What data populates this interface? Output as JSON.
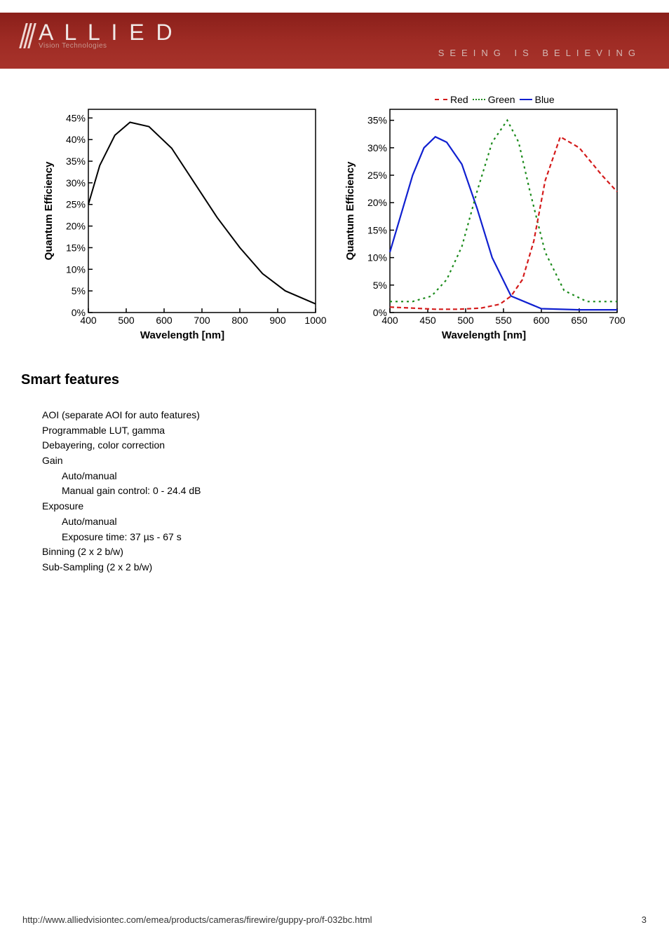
{
  "header": {
    "logo_main": "A L L I E D",
    "logo_sub": "Vision Technologies",
    "tagline": "SEEING  IS  BELIEVING"
  },
  "chart_left": {
    "type": "line",
    "ylabel": "Quantum Efficiency",
    "xlabel": "Wavelength [nm]",
    "xlim": [
      400,
      1000
    ],
    "xticks": [
      400,
      500,
      600,
      700,
      800,
      900,
      1000
    ],
    "ylim": [
      0,
      47
    ],
    "yticks": [
      0,
      5,
      10,
      15,
      20,
      25,
      30,
      35,
      40,
      45
    ],
    "ytick_labels": [
      "0%",
      "5%",
      "10%",
      "15%",
      "20%",
      "25%",
      "30%",
      "35%",
      "40%",
      "45%"
    ],
    "line_color": "#000000",
    "line_width": 2,
    "background_color": "#ffffff",
    "border_color": "#000000",
    "series": {
      "x": [
        400,
        430,
        470,
        510,
        560,
        620,
        680,
        740,
        800,
        860,
        920,
        1000
      ],
      "y": [
        25,
        34,
        41,
        44,
        43,
        38,
        30,
        22,
        15,
        9,
        5,
        2
      ]
    }
  },
  "chart_right": {
    "type": "line",
    "ylabel": "Quantum Efficiency",
    "xlabel": "Wavelength [nm]",
    "xlim": [
      400,
      700
    ],
    "xticks": [
      400,
      450,
      500,
      550,
      600,
      650,
      700
    ],
    "ylim": [
      0,
      37
    ],
    "yticks": [
      0,
      5,
      10,
      15,
      20,
      25,
      30,
      35
    ],
    "ytick_labels": [
      "0%",
      "5%",
      "10%",
      "15%",
      "20%",
      "25%",
      "30%",
      "35%"
    ],
    "background_color": "#ffffff",
    "border_color": "#000000",
    "legend": {
      "items": [
        {
          "label": "Red",
          "color": "#d41b1b",
          "dash": "6,4"
        },
        {
          "label": "Green",
          "color": "#1a8a1a",
          "dash": "3,5"
        },
        {
          "label": "Blue",
          "color": "#1020d0",
          "dash": "none"
        }
      ]
    },
    "line_width": 2.2,
    "series": {
      "red": {
        "color": "#d41b1b",
        "dash": "6,4",
        "x": [
          400,
          430,
          460,
          490,
          520,
          545,
          560,
          575,
          590,
          605,
          625,
          650,
          680,
          700
        ],
        "y": [
          1,
          0.8,
          0.6,
          0.6,
          0.8,
          1.5,
          3,
          6,
          13,
          24,
          32,
          30,
          25,
          22
        ]
      },
      "green": {
        "color": "#1a8a1a",
        "dash": "3,5",
        "x": [
          400,
          430,
          455,
          475,
          495,
          515,
          535,
          555,
          570,
          585,
          605,
          630,
          660,
          700
        ],
        "y": [
          2,
          2,
          3,
          6,
          12,
          22,
          31,
          35,
          31,
          22,
          11,
          4,
          2,
          2
        ]
      },
      "blue": {
        "color": "#1020d0",
        "dash": "none",
        "x": [
          400,
          415,
          430,
          445,
          460,
          475,
          495,
          515,
          535,
          560,
          600,
          650,
          700
        ],
        "y": [
          11,
          18,
          25,
          30,
          32,
          31,
          27,
          19,
          10,
          3,
          0.7,
          0.5,
          0.5
        ]
      }
    }
  },
  "section_title": "Smart features",
  "features": [
    {
      "text": "AOI (separate AOI for auto features)",
      "indent": 0
    },
    {
      "text": "Programmable LUT, gamma",
      "indent": 0
    },
    {
      "text": "Debayering, color correction",
      "indent": 0
    },
    {
      "text": "Gain",
      "indent": 0
    },
    {
      "text": "Auto/manual",
      "indent": 1
    },
    {
      "text": "Manual gain control: 0 - 24.4 dB",
      "indent": 1
    },
    {
      "text": "Exposure",
      "indent": 0
    },
    {
      "text": "Auto/manual",
      "indent": 1
    },
    {
      "text": "Exposure time: 37 µs - 67 s",
      "indent": 1
    },
    {
      "text": "Binning (2 x 2 b/w)",
      "indent": 0
    },
    {
      "text": "Sub-Sampling (2 x 2 b/w)",
      "indent": 0
    }
  ],
  "footer": {
    "url": "http://www.alliedvisiontec.com/emea/products/cameras/firewire/guppy-pro/f-032bc.html",
    "page": "3"
  }
}
